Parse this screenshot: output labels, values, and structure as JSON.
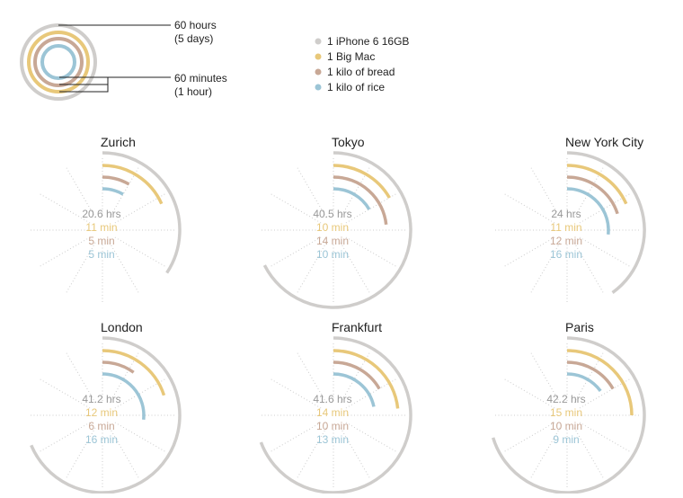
{
  "colors": {
    "iphone": "#cfcdcb",
    "bigmac": "#e8c87a",
    "bread": "#c8a896",
    "rice": "#9cc5d6",
    "spoke": "#cccccc",
    "text": "#222222"
  },
  "key": {
    "outer_label_1": "60 hours",
    "outer_label_2": "(5 days)",
    "inner_label_1": "60 minutes",
    "inner_label_2": "(1 hour)"
  },
  "legend": [
    {
      "key": "iphone",
      "label": "1 iPhone 6 16GB",
      "color": "#cfcdcb"
    },
    {
      "key": "bigmac",
      "label": "1 Big Mac",
      "color": "#e8c87a"
    },
    {
      "key": "bread",
      "label": "1 kilo of bread",
      "color": "#c8a896"
    },
    {
      "key": "rice",
      "label": "1 kilo of rice",
      "color": "#9cc5d6"
    }
  ],
  "chart_data": {
    "type": "radial-bar",
    "scales": {
      "iphone_max_hours": 60,
      "minutes_max": 60
    },
    "series": [
      {
        "key": "iphone",
        "name": "1 iPhone 6 16GB",
        "unit": "hrs"
      },
      {
        "key": "bigmac",
        "name": "1 Big Mac",
        "unit": "min"
      },
      {
        "key": "bread",
        "name": "1 kilo of bread",
        "unit": "min"
      },
      {
        "key": "rice",
        "name": "1 kilo of rice",
        "unit": "min"
      }
    ],
    "cities": [
      {
        "name": "Zurich",
        "iphone": 20.6,
        "bigmac": 11,
        "bread": 5,
        "rice": 5,
        "labels": [
          "20.6 hrs",
          "11 min",
          "5 min",
          "5 min"
        ]
      },
      {
        "name": "Tokyo",
        "iphone": 40.5,
        "bigmac": 10,
        "bread": 14,
        "rice": 10,
        "labels": [
          "40.5 hrs",
          "10 min",
          "14 min",
          "10 min"
        ]
      },
      {
        "name": "New York City",
        "iphone": 24,
        "bigmac": 11,
        "bread": 12,
        "rice": 16,
        "labels": [
          "24 hrs",
          "11 min",
          "12 min",
          "16 min"
        ]
      },
      {
        "name": "London",
        "iphone": 41.2,
        "bigmac": 12,
        "bread": 6,
        "rice": 16,
        "labels": [
          "41.2 hrs",
          "12 min",
          "6 min",
          "16 min"
        ]
      },
      {
        "name": "Frankfurt",
        "iphone": 41.6,
        "bigmac": 14,
        "bread": 10,
        "rice": 13,
        "labels": [
          "41.6 hrs",
          "14 min",
          "10 min",
          "13 min"
        ]
      },
      {
        "name": "Paris",
        "iphone": 42.2,
        "bigmac": 15,
        "bread": 10,
        "rice": 9,
        "labels": [
          "42.2 hrs",
          "15 min",
          "10 min",
          "9 min"
        ]
      }
    ]
  }
}
